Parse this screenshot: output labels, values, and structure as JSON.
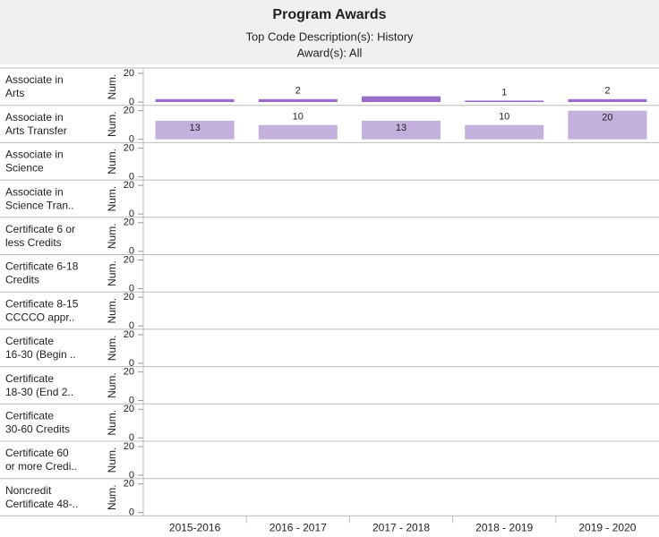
{
  "chart_data": {
    "type": "bar",
    "title": "Program Awards",
    "subtitle": [
      "Top Code Description(s): History",
      "Award(s): All"
    ],
    "categories": [
      "2015-2016",
      "2016 - 2017",
      "2017 - 2018",
      "2018 - 2019",
      "2019 - 2020"
    ],
    "ylabel": "Num.",
    "ylim": [
      0,
      20
    ],
    "yticks": [
      0,
      20
    ],
    "rows": [
      {
        "label": [
          "Associate in",
          "Arts"
        ],
        "color": "#9a6cc9",
        "values": [
          2,
          2,
          4,
          1,
          2
        ],
        "value_labels": [
          null,
          "2",
          null,
          "1",
          "2"
        ]
      },
      {
        "label": [
          "Associate in",
          "Arts Transfer"
        ],
        "color": "#c4b0dc",
        "values": [
          13,
          10,
          13,
          10,
          20
        ]
      },
      {
        "label": [
          "Associate in",
          "Science"
        ],
        "values": [
          null,
          null,
          null,
          null,
          null
        ]
      },
      {
        "label": [
          "Associate in",
          "Science Tran.."
        ],
        "values": [
          null,
          null,
          null,
          null,
          null
        ]
      },
      {
        "label": [
          "Certificate 6 or",
          "less Credits"
        ],
        "values": [
          null,
          null,
          null,
          null,
          null
        ]
      },
      {
        "label": [
          "Certificate 6-18",
          "Credits"
        ],
        "values": [
          null,
          null,
          null,
          null,
          null
        ]
      },
      {
        "label": [
          "Certificate 8-15",
          "CCCCO appr.."
        ],
        "values": [
          null,
          null,
          null,
          null,
          null
        ]
      },
      {
        "label": [
          "Certificate",
          "16-30 (Begin .."
        ],
        "values": [
          null,
          null,
          null,
          null,
          null
        ]
      },
      {
        "label": [
          "Certificate",
          "18-30 (End 2.."
        ],
        "values": [
          null,
          null,
          null,
          null,
          null
        ]
      },
      {
        "label": [
          "Certificate",
          "30-60 Credits"
        ],
        "values": [
          null,
          null,
          null,
          null,
          null
        ]
      },
      {
        "label": [
          "Certificate 60",
          "or more Credi.."
        ],
        "values": [
          null,
          null,
          null,
          null,
          null
        ]
      },
      {
        "label": [
          "Noncredit",
          "Certificate 48-.."
        ],
        "values": [
          null,
          null,
          null,
          null,
          null
        ]
      }
    ]
  }
}
